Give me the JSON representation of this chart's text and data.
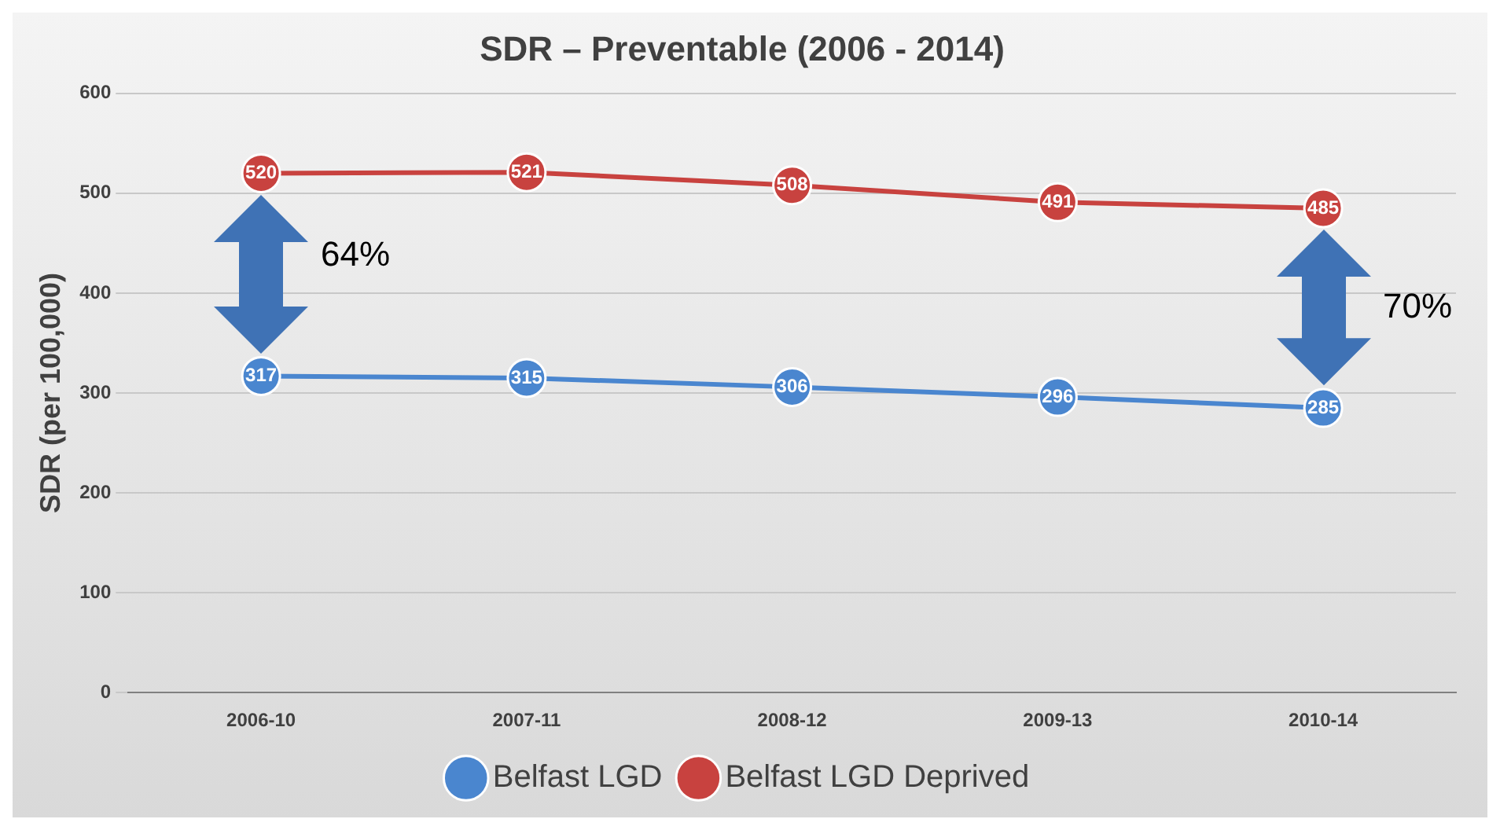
{
  "chart_data": {
    "type": "line",
    "title": "SDR – Preventable (2006 - 2014)",
    "ylabel": "SDR (per 100,000)",
    "categories": [
      "2006-10",
      "2007-11",
      "2008-12",
      "2009-13",
      "2010-14"
    ],
    "series": [
      {
        "name": "Belfast LGD",
        "color": "#4a86cf",
        "values": [
          317,
          315,
          306,
          296,
          285
        ]
      },
      {
        "name": "Belfast LGD Deprived",
        "color": "#c8423f",
        "values": [
          520,
          521,
          508,
          491,
          485
        ]
      }
    ],
    "ylim": [
      0,
      600
    ],
    "yticks": [
      0,
      100,
      200,
      300,
      400,
      500,
      600
    ],
    "grid": "y",
    "legend": "bottom",
    "marker": "circle",
    "data_labels": true,
    "annotations": [
      "64%",
      "70%"
    ]
  }
}
